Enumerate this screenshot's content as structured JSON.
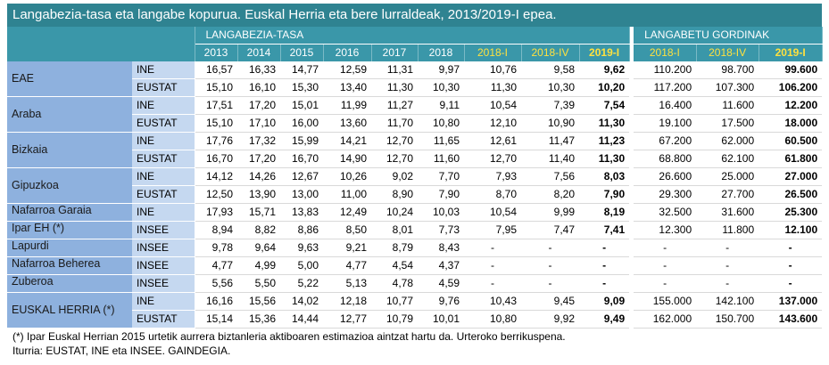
{
  "title": "Langabezia-tasa eta langabe kopurua. Euskal Herria eta bere lurraldeak, 2013/2019-I epea.",
  "header": {
    "group1": "LANGABEZIA-TASA",
    "group2": "LANGABETU GORDINAK",
    "rate_columns": [
      "2013",
      "2014",
      "2015",
      "2016",
      "2017",
      "2018",
      "2018-I",
      "2018-IV",
      "2019-I"
    ],
    "count_columns": [
      "2018-I",
      "2018-IV",
      "2019-I"
    ]
  },
  "table": {
    "rows": [
      {
        "region": "EAE",
        "sources": [
          {
            "source": "INE",
            "values": [
              "16,57",
              "16,33",
              "14,77",
              "12,59",
              "11,31",
              "9,97",
              "10,76",
              "9,58",
              "9,62",
              "110.200",
              "98.700",
              "99.600"
            ]
          },
          {
            "source": "EUSTAT",
            "values": [
              "15,10",
              "16,10",
              "15,30",
              "13,40",
              "11,30",
              "10,30",
              "11,30",
              "10,30",
              "10,20",
              "117.200",
              "107.300",
              "106.200"
            ]
          }
        ]
      },
      {
        "region": "Araba",
        "sources": [
          {
            "source": "INE",
            "values": [
              "17,51",
              "17,20",
              "15,01",
              "11,99",
              "11,27",
              "9,11",
              "10,54",
              "7,39",
              "7,54",
              "16.400",
              "11.600",
              "12.200"
            ]
          },
          {
            "source": "EUSTAT",
            "values": [
              "15,10",
              "17,10",
              "16,00",
              "13,60",
              "11,70",
              "10,80",
              "12,10",
              "10,90",
              "11,30",
              "19.100",
              "17.500",
              "18.000"
            ]
          }
        ]
      },
      {
        "region": "Bizkaia",
        "sources": [
          {
            "source": "INE",
            "values": [
              "17,76",
              "17,32",
              "15,99",
              "14,21",
              "12,70",
              "11,65",
              "12,61",
              "11,47",
              "11,23",
              "67.200",
              "62.000",
              "60.500"
            ]
          },
          {
            "source": "EUSTAT",
            "values": [
              "16,70",
              "17,20",
              "16,70",
              "14,90",
              "12,70",
              "11,60",
              "12,70",
              "11,40",
              "11,30",
              "68.800",
              "62.100",
              "61.800"
            ]
          }
        ]
      },
      {
        "region": "Gipuzkoa",
        "sources": [
          {
            "source": "INE",
            "values": [
              "14,12",
              "14,26",
              "12,67",
              "10,26",
              "9,02",
              "7,70",
              "7,93",
              "7,56",
              "8,03",
              "26.600",
              "25.000",
              "27.000"
            ]
          },
          {
            "source": "EUSTAT",
            "values": [
              "12,50",
              "13,90",
              "13,00",
              "11,00",
              "8,90",
              "7,90",
              "8,70",
              "8,20",
              "7,90",
              "29.300",
              "27.700",
              "26.500"
            ]
          }
        ]
      },
      {
        "region": "Nafarroa Garaia",
        "sources": [
          {
            "source": "INE",
            "values": [
              "17,93",
              "15,71",
              "13,83",
              "12,49",
              "10,24",
              "10,03",
              "10,54",
              "9,99",
              "8,19",
              "32.500",
              "31.600",
              "25.300"
            ]
          }
        ]
      },
      {
        "region": "Ipar EH (*)",
        "sources": [
          {
            "source": "INSEE",
            "values": [
              "8,94",
              "8,82",
              "8,86",
              "8,50",
              "8,01",
              "7,73",
              "7,95",
              "7,47",
              "7,41",
              "12.300",
              "11.800",
              "12.100"
            ]
          }
        ]
      },
      {
        "region": "Lapurdi",
        "sources": [
          {
            "source": "INSEE",
            "values": [
              "9,78",
              "9,64",
              "9,63",
              "9,21",
              "8,79",
              "8,43",
              "-",
              "-",
              "-",
              "-",
              "-",
              "-"
            ]
          }
        ]
      },
      {
        "region": "Nafarroa Beherea",
        "sources": [
          {
            "source": "INSEE",
            "values": [
              "4,77",
              "4,99",
              "5,00",
              "4,77",
              "4,54",
              "4,37",
              "-",
              "-",
              "-",
              "-",
              "-",
              "-"
            ]
          }
        ]
      },
      {
        "region": "Zuberoa",
        "sources": [
          {
            "source": "INSEE",
            "values": [
              "5,56",
              "5,50",
              "5,22",
              "5,13",
              "4,78",
              "4,59",
              "-",
              "-",
              "-",
              "-",
              "-",
              "-"
            ]
          }
        ]
      },
      {
        "region": "EUSKAL HERRIA (*)",
        "sources": [
          {
            "source": "INE",
            "values": [
              "16,16",
              "15,56",
              "14,02",
              "12,18",
              "10,77",
              "9,76",
              "10,43",
              "9,45",
              "9,09",
              "155.000",
              "142.100",
              "137.000"
            ]
          },
          {
            "source": "EUSTAT",
            "values": [
              "15,14",
              "15,36",
              "14,44",
              "12,77",
              "10,79",
              "10,01",
              "10,80",
              "9,92",
              "9,49",
              "162.000",
              "150.700",
              "143.600"
            ]
          }
        ]
      }
    ]
  },
  "footnotes": [
    "(*) Ipar Euskal Herrian 2015 urtetik aurrera biztanleria aktiboaren estimazioa aintzat hartu da. Urteroko berrikuspena.",
    "Iturria: EUSTAT, INE eta INSEE. GAINDEGIA."
  ]
}
